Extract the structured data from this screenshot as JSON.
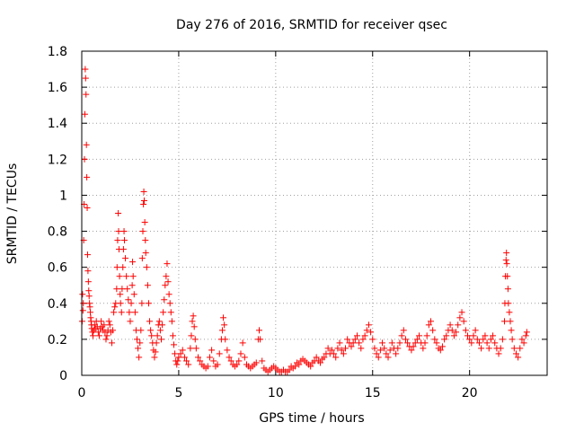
{
  "chart_data": {
    "type": "scatter",
    "title": "Day 276 of 2016, SRMTID for receiver qsec",
    "xlabel": "GPS time / hours",
    "ylabel": "SRMTID / TECUs",
    "xlim": [
      0,
      24
    ],
    "ylim": [
      0,
      1.8
    ],
    "xticks": [
      0,
      5,
      10,
      15,
      20
    ],
    "yticks": [
      0,
      0.2,
      0.4,
      0.6,
      0.8,
      1,
      1.2,
      1.4,
      1.6,
      1.8
    ],
    "ytick_labels": [
      "0",
      "0.2",
      "0.4",
      "0.6",
      "0.8",
      "1",
      "1.2",
      "1.4",
      "1.6",
      "1.8"
    ],
    "grid": true,
    "marker": "+",
    "marker_color": "#ff0000",
    "series": [
      {
        "name": "SRMTID",
        "points": [
          [
            0.02,
            0.3
          ],
          [
            0.04,
            0.45
          ],
          [
            0.06,
            0.36
          ],
          [
            0.08,
            0.4
          ],
          [
            0.1,
            0.75
          ],
          [
            0.12,
            0.95
          ],
          [
            0.14,
            1.2
          ],
          [
            0.16,
            1.45
          ],
          [
            0.18,
            1.7
          ],
          [
            0.2,
            1.65
          ],
          [
            0.22,
            1.56
          ],
          [
            0.24,
            1.28
          ],
          [
            0.26,
            1.1
          ],
          [
            0.28,
            0.93
          ],
          [
            0.3,
            0.67
          ],
          [
            0.32,
            0.58
          ],
          [
            0.34,
            0.52
          ],
          [
            0.36,
            0.47
          ],
          [
            0.38,
            0.44
          ],
          [
            0.4,
            0.4
          ],
          [
            0.42,
            0.38
          ],
          [
            0.44,
            0.35
          ],
          [
            0.46,
            0.32
          ],
          [
            0.48,
            0.3
          ],
          [
            0.5,
            0.28
          ],
          [
            0.52,
            0.26
          ],
          [
            0.55,
            0.24
          ],
          [
            0.58,
            0.22
          ],
          [
            0.62,
            0.25
          ],
          [
            0.66,
            0.28
          ],
          [
            0.7,
            0.26
          ],
          [
            0.75,
            0.3
          ],
          [
            0.8,
            0.27
          ],
          [
            0.85,
            0.24
          ],
          [
            0.9,
            0.22
          ],
          [
            0.95,
            0.26
          ],
          [
            1.0,
            0.3
          ],
          [
            1.05,
            0.27
          ],
          [
            1.1,
            0.25
          ],
          [
            1.15,
            0.28
          ],
          [
            1.2,
            0.24
          ],
          [
            1.25,
            0.2
          ],
          [
            1.3,
            0.22
          ],
          [
            1.35,
            0.25
          ],
          [
            1.4,
            0.3
          ],
          [
            1.45,
            0.28
          ],
          [
            1.5,
            0.24
          ],
          [
            1.55,
            0.18
          ],
          [
            1.6,
            0.25
          ],
          [
            1.65,
            0.35
          ],
          [
            1.7,
            0.38
          ],
          [
            1.75,
            0.4
          ],
          [
            1.8,
            0.48
          ],
          [
            1.82,
            0.6
          ],
          [
            1.85,
            0.75
          ],
          [
            1.88,
            0.9
          ],
          [
            1.9,
            0.8
          ],
          [
            1.92,
            0.7
          ],
          [
            1.95,
            0.55
          ],
          [
            1.98,
            0.45
          ],
          [
            2.0,
            0.4
          ],
          [
            2.05,
            0.35
          ],
          [
            2.08,
            0.48
          ],
          [
            2.12,
            0.6
          ],
          [
            2.15,
            0.7
          ],
          [
            2.18,
            0.8
          ],
          [
            2.2,
            0.75
          ],
          [
            2.25,
            0.65
          ],
          [
            2.3,
            0.55
          ],
          [
            2.35,
            0.48
          ],
          [
            2.4,
            0.42
          ],
          [
            2.45,
            0.35
          ],
          [
            2.5,
            0.3
          ],
          [
            2.55,
            0.4
          ],
          [
            2.6,
            0.5
          ],
          [
            2.62,
            0.63
          ],
          [
            2.65,
            0.55
          ],
          [
            2.7,
            0.45
          ],
          [
            2.75,
            0.35
          ],
          [
            2.8,
            0.25
          ],
          [
            2.85,
            0.2
          ],
          [
            2.9,
            0.15
          ],
          [
            2.95,
            0.1
          ],
          [
            3.0,
            0.18
          ],
          [
            3.05,
            0.25
          ],
          [
            3.1,
            0.4
          ],
          [
            3.12,
            0.65
          ],
          [
            3.15,
            0.8
          ],
          [
            3.18,
            0.95
          ],
          [
            3.2,
            1.02
          ],
          [
            3.22,
            0.97
          ],
          [
            3.25,
            0.85
          ],
          [
            3.28,
            0.75
          ],
          [
            3.3,
            0.68
          ],
          [
            3.35,
            0.6
          ],
          [
            3.4,
            0.5
          ],
          [
            3.45,
            0.4
          ],
          [
            3.5,
            0.3
          ],
          [
            3.55,
            0.25
          ],
          [
            3.6,
            0.22
          ],
          [
            3.65,
            0.18
          ],
          [
            3.7,
            0.14
          ],
          [
            3.75,
            0.1
          ],
          [
            3.8,
            0.13
          ],
          [
            3.85,
            0.18
          ],
          [
            3.9,
            0.22
          ],
          [
            3.95,
            0.28
          ],
          [
            4.0,
            0.3
          ],
          [
            4.05,
            0.25
          ],
          [
            4.1,
            0.2
          ],
          [
            4.15,
            0.28
          ],
          [
            4.2,
            0.35
          ],
          [
            4.25,
            0.42
          ],
          [
            4.3,
            0.5
          ],
          [
            4.35,
            0.55
          ],
          [
            4.4,
            0.62
          ],
          [
            4.45,
            0.52
          ],
          [
            4.5,
            0.45
          ],
          [
            4.55,
            0.4
          ],
          [
            4.6,
            0.35
          ],
          [
            4.65,
            0.3
          ],
          [
            4.7,
            0.22
          ],
          [
            4.75,
            0.17
          ],
          [
            4.8,
            0.12
          ],
          [
            4.85,
            0.08
          ],
          [
            4.9,
            0.06
          ],
          [
            4.95,
            0.08
          ],
          [
            5.0,
            0.1
          ],
          [
            5.1,
            0.12
          ],
          [
            5.2,
            0.14
          ],
          [
            5.3,
            0.1
          ],
          [
            5.4,
            0.08
          ],
          [
            5.5,
            0.06
          ],
          [
            5.6,
            0.15
          ],
          [
            5.65,
            0.22
          ],
          [
            5.7,
            0.3
          ],
          [
            5.75,
            0.33
          ],
          [
            5.8,
            0.27
          ],
          [
            5.85,
            0.2
          ],
          [
            5.9,
            0.15
          ],
          [
            6.0,
            0.1
          ],
          [
            6.1,
            0.08
          ],
          [
            6.2,
            0.06
          ],
          [
            6.3,
            0.05
          ],
          [
            6.4,
            0.04
          ],
          [
            6.5,
            0.05
          ],
          [
            6.6,
            0.1
          ],
          [
            6.7,
            0.14
          ],
          [
            6.8,
            0.08
          ],
          [
            6.9,
            0.05
          ],
          [
            7.0,
            0.06
          ],
          [
            7.1,
            0.12
          ],
          [
            7.2,
            0.2
          ],
          [
            7.25,
            0.25
          ],
          [
            7.3,
            0.32
          ],
          [
            7.35,
            0.28
          ],
          [
            7.4,
            0.2
          ],
          [
            7.5,
            0.14
          ],
          [
            7.6,
            0.1
          ],
          [
            7.7,
            0.08
          ],
          [
            7.8,
            0.06
          ],
          [
            7.9,
            0.05
          ],
          [
            8.0,
            0.06
          ],
          [
            8.1,
            0.08
          ],
          [
            8.2,
            0.12
          ],
          [
            8.3,
            0.18
          ],
          [
            8.4,
            0.1
          ],
          [
            8.5,
            0.06
          ],
          [
            8.6,
            0.05
          ],
          [
            8.7,
            0.04
          ],
          [
            8.8,
            0.05
          ],
          [
            8.9,
            0.06
          ],
          [
            9.0,
            0.07
          ],
          [
            9.1,
            0.2
          ],
          [
            9.15,
            0.25
          ],
          [
            9.2,
            0.2
          ],
          [
            9.3,
            0.08
          ],
          [
            9.4,
            0.04
          ],
          [
            9.5,
            0.03
          ],
          [
            9.6,
            0.02
          ],
          [
            9.7,
            0.03
          ],
          [
            9.8,
            0.04
          ],
          [
            9.9,
            0.05
          ],
          [
            10.0,
            0.04
          ],
          [
            10.1,
            0.03
          ],
          [
            10.2,
            0.02
          ],
          [
            10.3,
            0.02
          ],
          [
            10.4,
            0.03
          ],
          [
            10.5,
            0.02
          ],
          [
            10.6,
            0.02
          ],
          [
            10.7,
            0.03
          ],
          [
            10.8,
            0.05
          ],
          [
            10.9,
            0.04
          ],
          [
            11.0,
            0.05
          ],
          [
            11.1,
            0.07
          ],
          [
            11.2,
            0.06
          ],
          [
            11.3,
            0.08
          ],
          [
            11.4,
            0.09
          ],
          [
            11.5,
            0.08
          ],
          [
            11.6,
            0.07
          ],
          [
            11.7,
            0.06
          ],
          [
            11.8,
            0.05
          ],
          [
            11.9,
            0.07
          ],
          [
            12.0,
            0.08
          ],
          [
            12.1,
            0.1
          ],
          [
            12.2,
            0.08
          ],
          [
            12.3,
            0.07
          ],
          [
            12.4,
            0.09
          ],
          [
            12.5,
            0.1
          ],
          [
            12.6,
            0.12
          ],
          [
            12.7,
            0.15
          ],
          [
            12.8,
            0.12
          ],
          [
            12.9,
            0.14
          ],
          [
            13.0,
            0.12
          ],
          [
            13.1,
            0.1
          ],
          [
            13.2,
            0.15
          ],
          [
            13.3,
            0.18
          ],
          [
            13.4,
            0.14
          ],
          [
            13.5,
            0.12
          ],
          [
            13.6,
            0.15
          ],
          [
            13.7,
            0.2
          ],
          [
            13.8,
            0.18
          ],
          [
            13.9,
            0.16
          ],
          [
            14.0,
            0.18
          ],
          [
            14.1,
            0.2
          ],
          [
            14.2,
            0.22
          ],
          [
            14.3,
            0.18
          ],
          [
            14.4,
            0.15
          ],
          [
            14.5,
            0.2
          ],
          [
            14.6,
            0.22
          ],
          [
            14.7,
            0.25
          ],
          [
            14.8,
            0.28
          ],
          [
            14.9,
            0.24
          ],
          [
            15.0,
            0.2
          ],
          [
            15.1,
            0.15
          ],
          [
            15.2,
            0.12
          ],
          [
            15.3,
            0.1
          ],
          [
            15.4,
            0.14
          ],
          [
            15.5,
            0.18
          ],
          [
            15.6,
            0.15
          ],
          [
            15.7,
            0.12
          ],
          [
            15.8,
            0.1
          ],
          [
            15.9,
            0.14
          ],
          [
            16.0,
            0.18
          ],
          [
            16.1,
            0.15
          ],
          [
            16.2,
            0.12
          ],
          [
            16.3,
            0.15
          ],
          [
            16.4,
            0.18
          ],
          [
            16.5,
            0.22
          ],
          [
            16.6,
            0.25
          ],
          [
            16.7,
            0.2
          ],
          [
            16.8,
            0.18
          ],
          [
            16.9,
            0.16
          ],
          [
            17.0,
            0.14
          ],
          [
            17.1,
            0.16
          ],
          [
            17.2,
            0.18
          ],
          [
            17.3,
            0.2
          ],
          [
            17.4,
            0.22
          ],
          [
            17.5,
            0.18
          ],
          [
            17.6,
            0.15
          ],
          [
            17.7,
            0.18
          ],
          [
            17.8,
            0.22
          ],
          [
            17.9,
            0.28
          ],
          [
            18.0,
            0.3
          ],
          [
            18.1,
            0.25
          ],
          [
            18.2,
            0.2
          ],
          [
            18.3,
            0.18
          ],
          [
            18.4,
            0.15
          ],
          [
            18.5,
            0.14
          ],
          [
            18.6,
            0.16
          ],
          [
            18.7,
            0.2
          ],
          [
            18.8,
            0.22
          ],
          [
            18.9,
            0.25
          ],
          [
            19.0,
            0.28
          ],
          [
            19.1,
            0.25
          ],
          [
            19.2,
            0.22
          ],
          [
            19.3,
            0.24
          ],
          [
            19.4,
            0.28
          ],
          [
            19.5,
            0.32
          ],
          [
            19.6,
            0.35
          ],
          [
            19.7,
            0.3
          ],
          [
            19.8,
            0.25
          ],
          [
            19.9,
            0.22
          ],
          [
            20.0,
            0.2
          ],
          [
            20.1,
            0.18
          ],
          [
            20.2,
            0.22
          ],
          [
            20.3,
            0.25
          ],
          [
            20.4,
            0.2
          ],
          [
            20.5,
            0.18
          ],
          [
            20.6,
            0.15
          ],
          [
            20.7,
            0.2
          ],
          [
            20.8,
            0.22
          ],
          [
            20.9,
            0.18
          ],
          [
            21.0,
            0.15
          ],
          [
            21.1,
            0.2
          ],
          [
            21.2,
            0.22
          ],
          [
            21.3,
            0.18
          ],
          [
            21.4,
            0.15
          ],
          [
            21.5,
            0.12
          ],
          [
            21.6,
            0.15
          ],
          [
            21.7,
            0.2
          ],
          [
            21.8,
            0.3
          ],
          [
            21.82,
            0.4
          ],
          [
            21.85,
            0.55
          ],
          [
            21.88,
            0.64
          ],
          [
            21.9,
            0.68
          ],
          [
            21.92,
            0.62
          ],
          [
            21.95,
            0.55
          ],
          [
            21.98,
            0.48
          ],
          [
            22.0,
            0.4
          ],
          [
            22.05,
            0.35
          ],
          [
            22.1,
            0.3
          ],
          [
            22.15,
            0.25
          ],
          [
            22.2,
            0.2
          ],
          [
            22.3,
            0.15
          ],
          [
            22.4,
            0.12
          ],
          [
            22.5,
            0.1
          ],
          [
            22.6,
            0.15
          ],
          [
            22.7,
            0.2
          ],
          [
            22.8,
            0.18
          ],
          [
            22.9,
            0.22
          ],
          [
            22.95,
            0.24
          ]
        ]
      }
    ]
  }
}
